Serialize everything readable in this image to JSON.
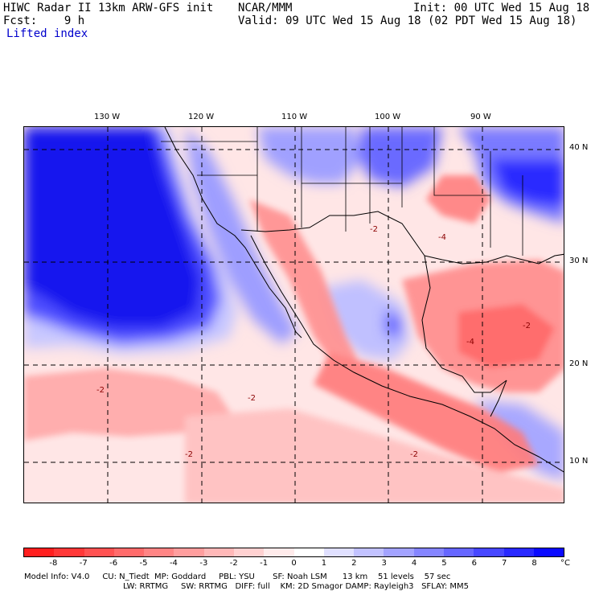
{
  "header": {
    "left_line1": "HIWC Radar II 13km ARW-GFS init",
    "agency": "NCAR/MMM",
    "left_line2": "Fcst:    9 h",
    "field_name": "Lifted index",
    "init": "Init: 00 UTC Wed 15 Aug 18",
    "valid": "Valid: 09 UTC Wed 15 Aug 18 (02 PDT Wed 15 Aug 18)"
  },
  "map": {
    "lon_labels": [
      "130 W",
      "120 W",
      "110 W",
      "100 W",
      "90 W"
    ],
    "lat_labels": [
      "40 N",
      "30 N",
      "20 N",
      "10 N"
    ],
    "contour_labels": [
      "-2",
      "-2",
      "-4",
      "-4",
      "-2",
      "-2",
      "-2",
      "-2"
    ]
  },
  "colorbar": {
    "unit": "°C",
    "tick_labels": [
      "-8",
      "-7",
      "-6",
      "-5",
      "-4",
      "-3",
      "-2",
      "-1",
      "0",
      "1",
      "2",
      "3",
      "4",
      "5",
      "6",
      "7",
      "8"
    ],
    "colors": [
      "#ff1f1f",
      "#ff3838",
      "#ff5252",
      "#ff6b6b",
      "#ff8585",
      "#ff9e9e",
      "#ffb8b8",
      "#ffd1d1",
      "#ffebeb",
      "#ffffff",
      "#e0e0ff",
      "#c2c2ff",
      "#a3a3ff",
      "#8585ff",
      "#6666ff",
      "#4747ff",
      "#2929ff",
      "#0a0aff"
    ]
  },
  "model_info": {
    "line1": "Model Info: V4.0     CU: N_Tiedt  MP: Goddard     PBL: YSU       SF: Noah LSM      13 km    51 levels    57 sec",
    "line2": "LW: RRTMG     SW: RRTMG   DIFF: full    KM: 2D Smagor DAMP: Rayleigh3   SFLAY: MM5"
  }
}
